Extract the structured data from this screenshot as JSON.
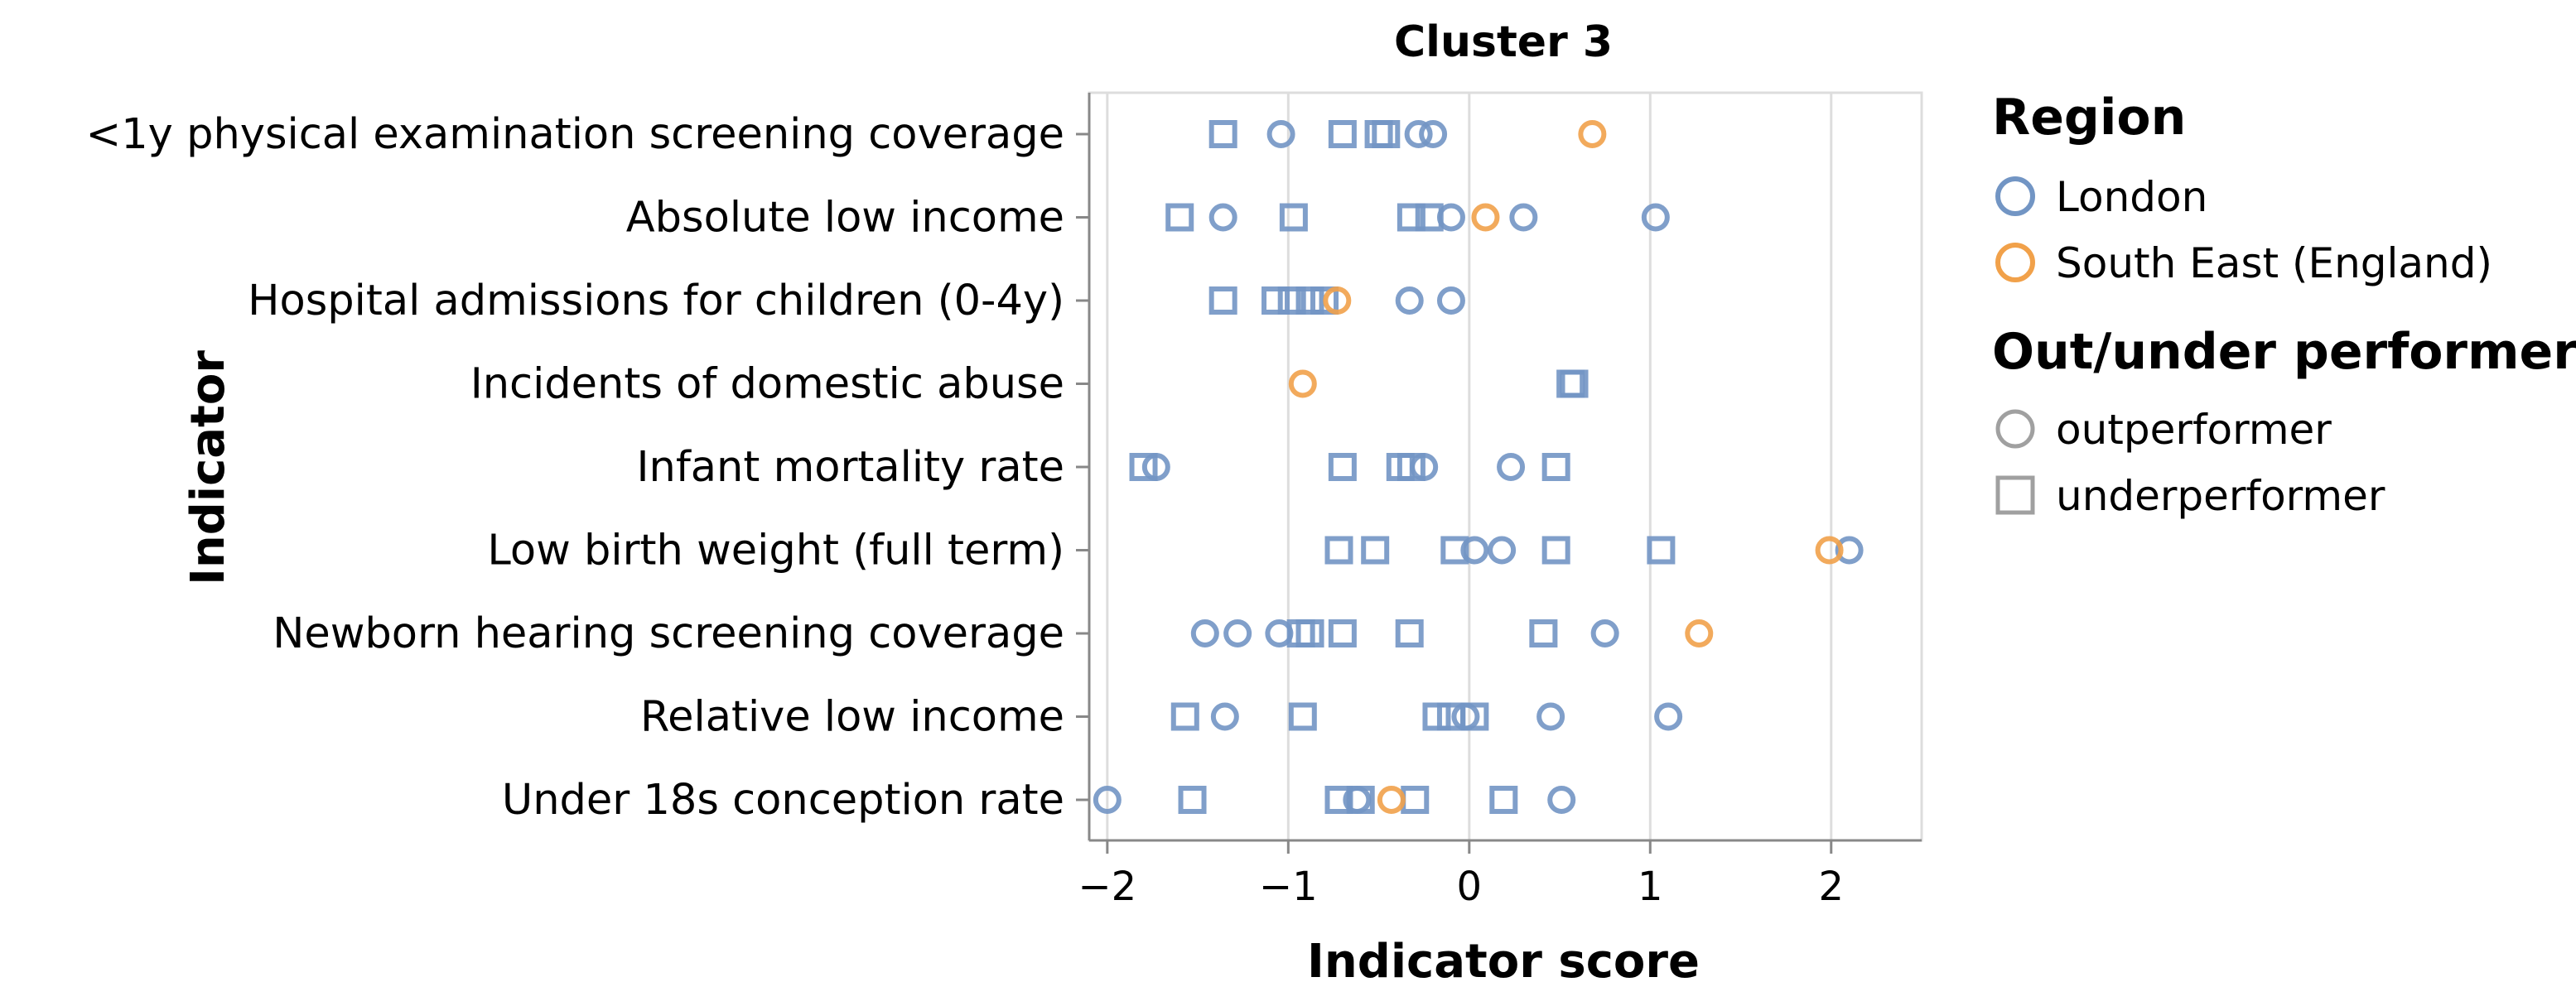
{
  "chart_data": {
    "type": "scatter",
    "title": "Cluster 3",
    "xlabel": "Indicator score",
    "ylabel": "Indicator",
    "xlim": [
      -2.1,
      2.5
    ],
    "x_ticks": [
      "−2",
      "−1",
      "0",
      "1",
      "2"
    ],
    "x_tick_values": [
      -2,
      -1,
      0,
      1,
      2
    ],
    "grid": true,
    "legend_placement": "right",
    "categories": [
      "<1y physical examination screening coverage",
      "Absolute low income",
      "Hospital admissions for children (0-4y)",
      "Incidents of domestic abuse",
      "Infant mortality rate",
      "Low birth weight (full term)",
      "Newborn hearing screening coverage",
      "Relative low income",
      "Under 18s conception rate"
    ],
    "legend": {
      "region_title": "Region",
      "regions": [
        {
          "name": "London",
          "color": "#7295c4"
        },
        {
          "name": "South East (England)",
          "color": "#f1a14a"
        }
      ],
      "performer_title": "Out/under performer",
      "performers": [
        {
          "name": "outperformer",
          "shape": "circle"
        },
        {
          "name": "underperformer",
          "shape": "square"
        }
      ],
      "legend_symbol_color": "#a0a0a0"
    },
    "series": [
      {
        "region": "London",
        "performer": "outperformer",
        "points": [
          {
            "category": 0,
            "x": -1.04
          },
          {
            "category": 0,
            "x": -0.28
          },
          {
            "category": 0,
            "x": -0.2
          },
          {
            "category": 1,
            "x": -1.36
          },
          {
            "category": 1,
            "x": -0.1
          },
          {
            "category": 1,
            "x": 0.3
          },
          {
            "category": 1,
            "x": 1.03
          },
          {
            "category": 2,
            "x": -0.33
          },
          {
            "category": 2,
            "x": -0.1
          },
          {
            "category": 4,
            "x": -1.73
          },
          {
            "category": 4,
            "x": -0.25
          },
          {
            "category": 4,
            "x": 0.23
          },
          {
            "category": 5,
            "x": 0.03
          },
          {
            "category": 5,
            "x": 0.18
          },
          {
            "category": 5,
            "x": 2.1
          },
          {
            "category": 6,
            "x": -1.46
          },
          {
            "category": 6,
            "x": -1.28
          },
          {
            "category": 6,
            "x": -1.05
          },
          {
            "category": 6,
            "x": 0.75
          },
          {
            "category": 7,
            "x": -1.35
          },
          {
            "category": 7,
            "x": -0.02
          },
          {
            "category": 7,
            "x": 0.45
          },
          {
            "category": 7,
            "x": 1.1
          },
          {
            "category": 8,
            "x": -2.0
          },
          {
            "category": 8,
            "x": -0.62
          },
          {
            "category": 8,
            "x": 0.51
          }
        ]
      },
      {
        "region": "London",
        "performer": "underperformer",
        "points": [
          {
            "category": 0,
            "x": -1.36
          },
          {
            "category": 0,
            "x": -0.7
          },
          {
            "category": 0,
            "x": -0.5
          },
          {
            "category": 0,
            "x": -0.46
          },
          {
            "category": 1,
            "x": -1.6
          },
          {
            "category": 1,
            "x": -0.97
          },
          {
            "category": 1,
            "x": -0.32
          },
          {
            "category": 1,
            "x": -0.22
          },
          {
            "category": 2,
            "x": -1.36
          },
          {
            "category": 2,
            "x": -1.07
          },
          {
            "category": 2,
            "x": -0.98
          },
          {
            "category": 2,
            "x": -0.88
          },
          {
            "category": 2,
            "x": -0.8
          },
          {
            "category": 3,
            "x": 0.56
          },
          {
            "category": 3,
            "x": 0.58
          },
          {
            "category": 4,
            "x": -1.8
          },
          {
            "category": 4,
            "x": -0.7
          },
          {
            "category": 4,
            "x": -0.38
          },
          {
            "category": 4,
            "x": -0.32
          },
          {
            "category": 4,
            "x": 0.48
          },
          {
            "category": 5,
            "x": -0.72
          },
          {
            "category": 5,
            "x": -0.52
          },
          {
            "category": 5,
            "x": -0.08
          },
          {
            "category": 5,
            "x": 0.48
          },
          {
            "category": 5,
            "x": 1.06
          },
          {
            "category": 6,
            "x": -0.93
          },
          {
            "category": 6,
            "x": -0.88
          },
          {
            "category": 6,
            "x": -0.7
          },
          {
            "category": 6,
            "x": -0.33
          },
          {
            "category": 6,
            "x": 0.41
          },
          {
            "category": 7,
            "x": -1.57
          },
          {
            "category": 7,
            "x": -0.92
          },
          {
            "category": 7,
            "x": -0.18
          },
          {
            "category": 7,
            "x": -0.1
          },
          {
            "category": 7,
            "x": 0.03
          },
          {
            "category": 8,
            "x": -1.53
          },
          {
            "category": 8,
            "x": -0.72
          },
          {
            "category": 8,
            "x": -0.6
          },
          {
            "category": 8,
            "x": -0.3
          },
          {
            "category": 8,
            "x": 0.19
          }
        ]
      },
      {
        "region": "South East (England)",
        "performer": "outperformer",
        "points": [
          {
            "category": 0,
            "x": 0.68
          },
          {
            "category": 1,
            "x": 0.09
          },
          {
            "category": 2,
            "x": -0.73
          },
          {
            "category": 3,
            "x": -0.92
          },
          {
            "category": 5,
            "x": 1.99
          },
          {
            "category": 6,
            "x": 1.27
          },
          {
            "category": 8,
            "x": -0.43
          }
        ]
      }
    ]
  }
}
